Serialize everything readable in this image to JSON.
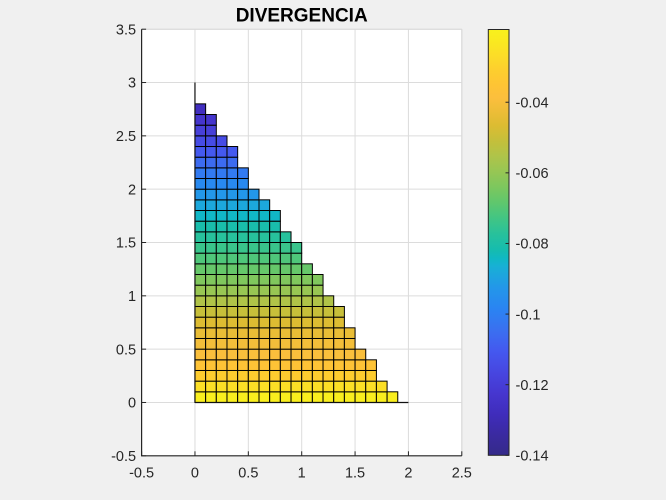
{
  "window": {
    "background": "#f0f0f0"
  },
  "title": "DIVERGENCIA",
  "chart_data": {
    "type": "heatmap",
    "title": "DIVERGENCIA",
    "xlabel": "",
    "ylabel": "",
    "xlim": [
      -0.5,
      2.5
    ],
    "ylim": [
      -0.5,
      3.5
    ],
    "grid": true,
    "xticks": [
      -0.5,
      0,
      0.5,
      1,
      1.5,
      2,
      2.5
    ],
    "xtick_labels": [
      "-0.5",
      "0",
      "0.5",
      "1",
      "1.5",
      "2",
      "2.5"
    ],
    "yticks": [
      -0.5,
      0,
      0.5,
      1,
      1.5,
      2,
      2.5,
      3,
      3.5
    ],
    "ytick_labels": [
      "-0.5",
      "0",
      "0.5",
      "1",
      "1.5",
      "2",
      "2.5",
      "3",
      "3.5"
    ],
    "cell_size": 0.1,
    "rows": [
      {
        "y": 0.0,
        "count": 19,
        "value": -0.0209
      },
      {
        "y": 0.1,
        "count": 18,
        "value": -0.026
      },
      {
        "y": 0.2,
        "count": 17,
        "value": -0.0321
      },
      {
        "y": 0.3,
        "count": 17,
        "value": -0.036
      },
      {
        "y": 0.4,
        "count": 16,
        "value": -0.0392
      },
      {
        "y": 0.5,
        "count": 15,
        "value": -0.0411
      },
      {
        "y": 0.6,
        "count": 15,
        "value": -0.0435
      },
      {
        "y": 0.7,
        "count": 14,
        "value": -0.0465
      },
      {
        "y": 0.8,
        "count": 14,
        "value": -0.0505
      },
      {
        "y": 0.9,
        "count": 13,
        "value": -0.055
      },
      {
        "y": 1.0,
        "count": 12,
        "value": -0.0594
      },
      {
        "y": 1.1,
        "count": 12,
        "value": -0.0635
      },
      {
        "y": 1.2,
        "count": 11,
        "value": -0.0674
      },
      {
        "y": 1.3,
        "count": 10,
        "value": -0.0709
      },
      {
        "y": 1.4,
        "count": 10,
        "value": -0.0743
      },
      {
        "y": 1.5,
        "count": 9,
        "value": -0.0776
      },
      {
        "y": 1.6,
        "count": 8,
        "value": -0.081
      },
      {
        "y": 1.7,
        "count": 8,
        "value": -0.0846
      },
      {
        "y": 1.8,
        "count": 7,
        "value": -0.0885
      },
      {
        "y": 1.9,
        "count": 6,
        "value": -0.0926
      },
      {
        "y": 2.0,
        "count": 5,
        "value": -0.0969
      },
      {
        "y": 2.1,
        "count": 5,
        "value": -0.1014
      },
      {
        "y": 2.2,
        "count": 4,
        "value": -0.1059
      },
      {
        "y": 2.3,
        "count": 4,
        "value": -0.1103
      },
      {
        "y": 2.4,
        "count": 3,
        "value": -0.1147
      },
      {
        "y": 2.5,
        "count": 2,
        "value": -0.119
      },
      {
        "y": 2.6,
        "count": 2,
        "value": -0.1232
      },
      {
        "y": 2.7,
        "count": 1,
        "value": -0.1273
      }
    ],
    "domain_outline": [
      {
        "from": [
          0,
          0
        ],
        "to": [
          0,
          3
        ]
      },
      {
        "from": [
          0,
          0
        ],
        "to": [
          2,
          0
        ]
      }
    ],
    "colorbar": {
      "min": -0.14,
      "max": -0.0194,
      "ticks": [
        -0.04,
        -0.06,
        -0.08,
        -0.1,
        -0.12,
        -0.14
      ],
      "tick_labels": [
        "-0.04",
        "-0.06",
        "-0.08",
        "-0.1",
        "-0.12",
        "-0.14"
      ],
      "location": "right"
    },
    "colormap": [
      [
        0.0,
        [
          52,
          42,
          137
        ]
      ],
      [
        0.044,
        [
          58,
          42,
          158
        ]
      ],
      [
        0.094,
        [
          63,
          44,
          186
        ]
      ],
      [
        0.144,
        [
          70,
          54,
          207
        ]
      ],
      [
        0.194,
        [
          71,
          70,
          224
        ]
      ],
      [
        0.244,
        [
          68,
          88,
          239
        ]
      ],
      [
        0.294,
        [
          58,
          112,
          240
        ]
      ],
      [
        0.344,
        [
          42,
          132,
          242
        ]
      ],
      [
        0.394,
        [
          35,
          151,
          233
        ]
      ],
      [
        0.444,
        [
          24,
          176,
          213
        ]
      ],
      [
        0.462,
        [
          16,
          184,
          196
        ]
      ],
      [
        0.483,
        [
          22,
          188,
          174
        ]
      ],
      [
        0.52,
        [
          40,
          193,
          155
        ]
      ],
      [
        0.556,
        [
          65,
          197,
          132
        ]
      ],
      [
        0.592,
        [
          94,
          199,
          110
        ]
      ],
      [
        0.629,
        [
          124,
          199,
          94
        ]
      ],
      [
        0.665,
        [
          150,
          198,
          84
        ]
      ],
      [
        0.701,
        [
          174,
          196,
          74
        ]
      ],
      [
        0.738,
        [
          196,
          191,
          59
        ]
      ],
      [
        0.774,
        [
          220,
          188,
          50
        ]
      ],
      [
        0.81,
        [
          238,
          189,
          56
        ]
      ],
      [
        0.84,
        [
          252,
          191,
          61
        ]
      ],
      [
        0.869,
        [
          254,
          196,
          52
        ]
      ],
      [
        0.903,
        [
          253,
          206,
          46
        ]
      ],
      [
        0.937,
        [
          252,
          220,
          40
        ]
      ],
      [
        0.971,
        [
          250,
          233,
          32
        ]
      ],
      [
        1.0,
        [
          248,
          241,
          28
        ]
      ]
    ]
  },
  "colors": {
    "figure_background": "#f0f0f0",
    "plot_background": "#ffffff",
    "grid": "#dcdcdc",
    "spine": "#262626",
    "spine_light": "#d9d9d9",
    "tick": "#262626",
    "tick_label": "#262626",
    "title": "#000000",
    "cell_edge": "#000000",
    "outline": "#111111"
  }
}
